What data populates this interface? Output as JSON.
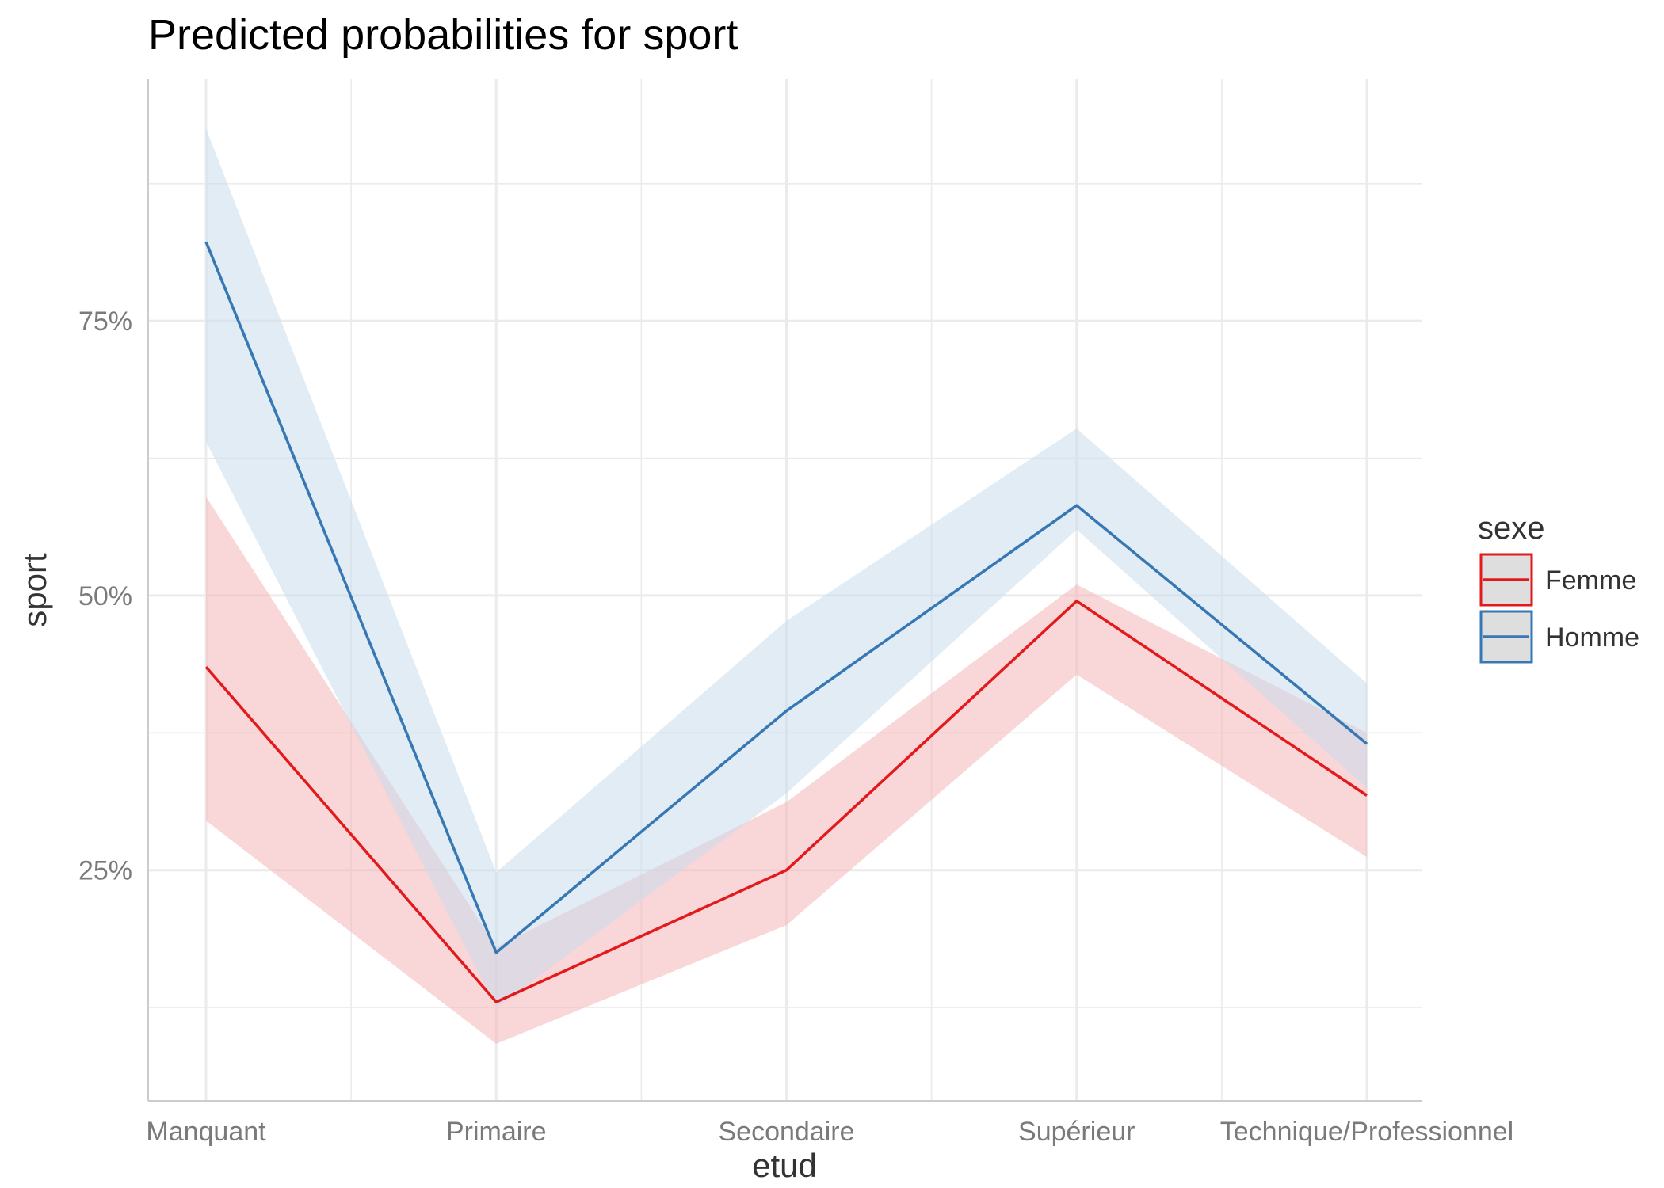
{
  "chart_data": {
    "type": "line",
    "title": "Predicted probabilities for sport",
    "xlabel": "etud",
    "ylabel": "sport",
    "categories": [
      "Manquant",
      "Primaire",
      "Secondaire",
      "Supérieur",
      "Technique/Professionnel"
    ],
    "y_ticks": [
      0.25,
      0.5,
      0.75
    ],
    "y_tick_labels": [
      "25%",
      "50%",
      "75%"
    ],
    "ylim": [
      0.04,
      0.97
    ],
    "grid": true,
    "legend": {
      "title": "sexe",
      "position": "right"
    },
    "series": [
      {
        "name": "Femme",
        "color": "#e31a1c",
        "fill": "#f4b4b6",
        "values": [
          0.435,
          0.13,
          0.25,
          0.495,
          0.318
        ],
        "lower": [
          0.295,
          0.092,
          0.2,
          0.428,
          0.262
        ],
        "upper": [
          0.59,
          0.18,
          0.312,
          0.51,
          0.375
        ]
      },
      {
        "name": "Homme",
        "color": "#3778b4",
        "fill": "#c9dcec",
        "values": [
          0.822,
          0.175,
          0.395,
          0.582,
          0.365
        ],
        "lower": [
          0.64,
          0.125,
          0.32,
          0.56,
          0.325
        ],
        "upper": [
          0.925,
          0.248,
          0.477,
          0.652,
          0.42
        ]
      }
    ]
  }
}
